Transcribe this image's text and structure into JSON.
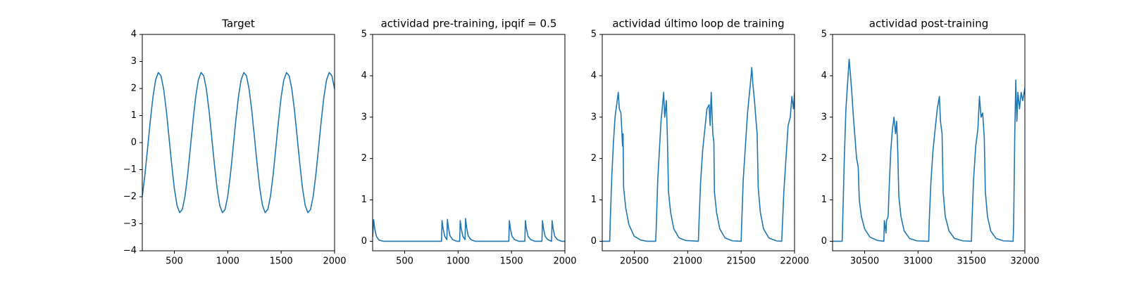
{
  "chart_data": [
    {
      "type": "line",
      "title": "Target",
      "color": "#1f77b4",
      "x": [
        200,
        225,
        250,
        275,
        300,
        325,
        350,
        375,
        400,
        425,
        450,
        475,
        500,
        525,
        550,
        575,
        600,
        625,
        650,
        675,
        700,
        725,
        750,
        775,
        800,
        825,
        850,
        875,
        900,
        925,
        950,
        975,
        1000,
        1025,
        1050,
        1075,
        1100,
        1125,
        1150,
        1175,
        1200,
        1225,
        1250,
        1275,
        1300,
        1325,
        1350,
        1375,
        1400,
        1425,
        1450,
        1475,
        1500,
        1525,
        1550,
        1575,
        1600,
        1625,
        1650,
        1675,
        1700,
        1725,
        1750,
        1775,
        1800,
        1825,
        1850,
        1875,
        1900,
        1925,
        1950,
        1975,
        2000
      ],
      "values": [
        -1.98,
        -1.18,
        -0.2,
        0.8,
        1.69,
        2.32,
        2.59,
        2.47,
        1.98,
        1.18,
        0.2,
        -0.8,
        -1.69,
        -2.32,
        -2.59,
        -2.47,
        -1.98,
        -1.18,
        -0.2,
        0.8,
        1.69,
        2.32,
        2.59,
        2.47,
        1.98,
        1.18,
        0.2,
        -0.8,
        -1.69,
        -2.32,
        -2.59,
        -2.47,
        -1.98,
        -1.18,
        -0.2,
        0.8,
        1.69,
        2.32,
        2.59,
        2.47,
        1.98,
        1.18,
        0.2,
        -0.8,
        -1.69,
        -2.32,
        -2.59,
        -2.47,
        -1.98,
        -1.18,
        -0.2,
        0.8,
        1.69,
        2.32,
        2.59,
        2.47,
        1.98,
        1.18,
        0.2,
        -0.8,
        -1.69,
        -2.32,
        -2.59,
        -2.47,
        -1.98,
        -1.18,
        -0.2,
        0.8,
        1.69,
        2.32,
        2.59,
        2.47,
        1.98
      ],
      "xlim": [
        200,
        2000
      ],
      "xticks": [
        500,
        1000,
        1500,
        2000
      ],
      "ylim": [
        -4,
        4
      ],
      "yticks": [
        {
          "value": -4,
          "label": "−4"
        },
        {
          "value": -3,
          "label": "−3"
        },
        {
          "value": -2,
          "label": "−2"
        },
        {
          "value": -1,
          "label": "−1"
        },
        0,
        1,
        2,
        3,
        4
      ]
    },
    {
      "type": "line",
      "title": "actividad pre-training, ipqif = 0.5",
      "color": "#1f77b4",
      "x": [
        200,
        210,
        220,
        235,
        260,
        300,
        845,
        850,
        860,
        875,
        895,
        900,
        910,
        925,
        950,
        990,
        1015,
        1020,
        1030,
        1045,
        1065,
        1070,
        1080,
        1095,
        1120,
        1160,
        1475,
        1480,
        1490,
        1505,
        1530,
        1570,
        1625,
        1630,
        1640,
        1655,
        1680,
        1720,
        1785,
        1790,
        1800,
        1815,
        1840,
        1875,
        1880,
        1890,
        1905,
        1930,
        1970,
        2000
      ],
      "values": [
        0.1,
        0.52,
        0.3,
        0.12,
        0.03,
        0,
        0,
        0.5,
        0.3,
        0.12,
        0.04,
        0.53,
        0.32,
        0.13,
        0.04,
        0,
        0,
        0.5,
        0.3,
        0.12,
        0.04,
        0.55,
        0.33,
        0.13,
        0.04,
        0,
        0,
        0.5,
        0.3,
        0.12,
        0.04,
        0,
        0,
        0.5,
        0.3,
        0.12,
        0.04,
        0,
        0,
        0.5,
        0.3,
        0.12,
        0.04,
        0,
        0.5,
        0.3,
        0.12,
        0.04,
        0,
        0
      ],
      "xlim": [
        200,
        2000
      ],
      "xticks": [
        500,
        1000,
        1500,
        2000
      ],
      "ylim": [
        -0.23,
        5
      ],
      "yticks": [
        0,
        1,
        2,
        3,
        4,
        5
      ]
    },
    {
      "type": "line",
      "title": "actividad último loop de training",
      "color": "#1f77b4",
      "x": [
        20200,
        20270,
        20275,
        20290,
        20305,
        20320,
        20335,
        20350,
        20360,
        20375,
        20390,
        20395,
        20400,
        20420,
        20450,
        20500,
        20560,
        20620,
        20700,
        20705,
        20720,
        20735,
        20750,
        20765,
        20775,
        20785,
        20800,
        20810,
        20820,
        20840,
        20870,
        20920,
        20980,
        21100,
        21105,
        21120,
        21140,
        21160,
        21180,
        21200,
        21210,
        21220,
        21235,
        21245,
        21250,
        21270,
        21300,
        21350,
        21420,
        21500,
        21505,
        21520,
        21540,
        21560,
        21575,
        21590,
        21600,
        21610,
        21625,
        21640,
        21650,
        21660,
        21680,
        21710,
        21760,
        21830,
        21880,
        21885,
        21900,
        21920,
        21940,
        21960,
        21975,
        21990,
        22000
      ],
      "values": [
        0,
        0,
        0.5,
        1.6,
        2.4,
        3.0,
        3.3,
        3.6,
        3.2,
        3.1,
        2.3,
        2.6,
        1.3,
        0.8,
        0.4,
        0.12,
        0.03,
        0,
        0,
        0.3,
        1.5,
        2.2,
        2.9,
        3.3,
        3.6,
        3.0,
        3.4,
        2.5,
        1.2,
        0.7,
        0.3,
        0.08,
        0.02,
        0,
        0.4,
        1.4,
        2.2,
        2.7,
        3.2,
        3.3,
        2.8,
        3.6,
        2.6,
        2.4,
        1.2,
        0.7,
        0.3,
        0.08,
        0.01,
        0,
        0.4,
        1.5,
        2.3,
        3.1,
        3.5,
        3.9,
        4.2,
        3.8,
        3.4,
        2.9,
        2.6,
        1.3,
        0.7,
        0.3,
        0.08,
        0.01,
        0,
        0.3,
        1.2,
        2.0,
        2.8,
        3.0,
        3.5,
        3.2,
        3.6
      ],
      "xlim": [
        20200,
        22000
      ],
      "xticks": [
        20500,
        21000,
        21500,
        22000
      ],
      "ylim": [
        -0.23,
        5
      ],
      "yticks": [
        0,
        1,
        2,
        3,
        4,
        5
      ]
    },
    {
      "type": "line",
      "title": "actividad post-training",
      "color": "#1f77b4",
      "x": [
        30200,
        30290,
        30295,
        30310,
        30325,
        30340,
        30355,
        30365,
        30380,
        30395,
        30410,
        30425,
        30440,
        30450,
        30470,
        30500,
        30550,
        30620,
        30680,
        30685,
        30700,
        30705,
        30720,
        30730,
        30745,
        30760,
        30775,
        30790,
        30800,
        30810,
        30820,
        30840,
        30870,
        30920,
        30990,
        31100,
        31105,
        31120,
        31140,
        31160,
        31180,
        31200,
        31210,
        31225,
        31235,
        31255,
        31290,
        31340,
        31420,
        31500,
        31505,
        31520,
        31540,
        31560,
        31575,
        31590,
        31605,
        31620,
        31630,
        31650,
        31680,
        31730,
        31800,
        31890,
        31895,
        31905,
        31915,
        31925,
        31935,
        31950,
        31965,
        31980,
        32000
      ],
      "values": [
        0,
        0,
        0.5,
        2.0,
        3.2,
        3.8,
        4.4,
        4.1,
        3.6,
        3.0,
        2.5,
        2.0,
        1.8,
        1.0,
        0.6,
        0.3,
        0.1,
        0.02,
        0,
        0.5,
        0.2,
        0.5,
        0.6,
        1.3,
        2.2,
        2.7,
        3.0,
        2.6,
        2.9,
        2.2,
        1.1,
        0.6,
        0.25,
        0.07,
        0.01,
        0,
        0.5,
        1.4,
        2.2,
        2.7,
        3.2,
        3.5,
        2.9,
        2.6,
        1.2,
        0.6,
        0.25,
        0.07,
        0.01,
        0,
        0.5,
        1.5,
        2.3,
        2.7,
        3.5,
        3.0,
        3.1,
        2.5,
        1.2,
        0.6,
        0.25,
        0.07,
        0.01,
        0,
        0.4,
        2.5,
        3.9,
        2.9,
        3.6,
        3.2,
        3.6,
        3.4,
        3.7
      ],
      "xlim": [
        30200,
        32000
      ],
      "xticks": [
        30500,
        31000,
        31500,
        32000
      ],
      "ylim": [
        -0.23,
        5
      ],
      "yticks": [
        0,
        1,
        2,
        3,
        4,
        5
      ]
    }
  ]
}
